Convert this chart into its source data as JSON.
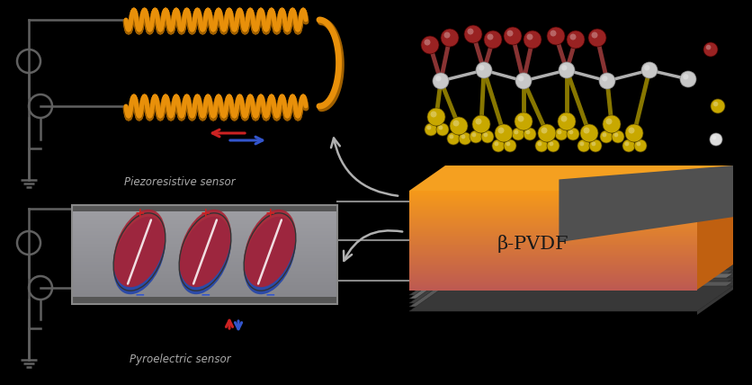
{
  "background_color": "#000000",
  "pvdf_label": "β-PVDF",
  "sensor1_label": "Piezoresistive sensor",
  "sensor2_label": "Pyroelectric sensor",
  "coil_color": "#E8900A",
  "coil_color_dark": "#A06000",
  "circuit_color": "#606060",
  "arrow_red": "#CC2222",
  "arrow_blue": "#3355CC",
  "label_color": "#AAAAAA",
  "wire_color": "#888888",
  "mol_backbone_color": "#C8C8C8",
  "mol_red_color": "#992222",
  "mol_yellow_color": "#C8A800",
  "mol_white_color": "#DDDDDD"
}
